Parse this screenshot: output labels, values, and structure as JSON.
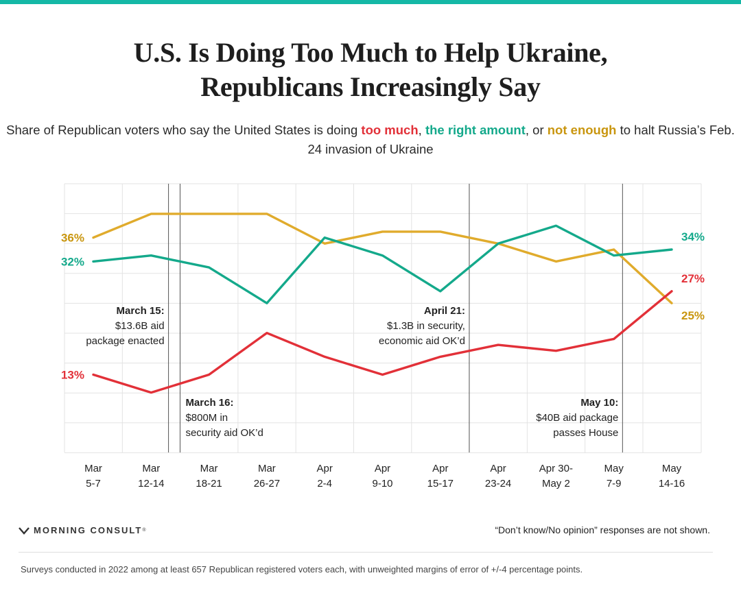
{
  "colors": {
    "top_bar": "#15b8a6",
    "too_much": "#e23038",
    "right_amount": "#14a98b",
    "not_enough": "#e0ab2c",
    "not_enough_label": "#c9960f",
    "grid": "#e3e3e3",
    "event_line": "#555555"
  },
  "title_lines": [
    "U.S. Is Doing Too Much to Help Ukraine,",
    "Republicans Increasingly Say"
  ],
  "subtitle": {
    "p1": "Share of Republican voters who say the United States is doing ",
    "too_much": "too much",
    "p2": ", ",
    "right_amount": "the right amount",
    "p3": ", or ",
    "not_enough": "not enough",
    "p4": " to halt Russia’s Feb. 24 invasion of Ukraine"
  },
  "chart_data": {
    "type": "line",
    "title": "U.S. Is Doing Too Much to Help Ukraine, Republicans Increasingly Say",
    "xlabel": "",
    "ylabel": "",
    "ylim": [
      0,
      45
    ],
    "grid": true,
    "categories": [
      [
        "Mar",
        "5-7"
      ],
      [
        "Mar",
        "12-14"
      ],
      [
        "Mar",
        "18-21"
      ],
      [
        "Mar",
        "26-27"
      ],
      [
        "Apr",
        "2-4"
      ],
      [
        "Apr",
        "9-10"
      ],
      [
        "Apr",
        "15-17"
      ],
      [
        "Apr",
        "23-24"
      ],
      [
        "Apr 30-",
        "May 2"
      ],
      [
        "May",
        "7-9"
      ],
      [
        "May",
        "14-16"
      ]
    ],
    "series": [
      {
        "key": "not_enough",
        "name": "not enough",
        "values": [
          36,
          40,
          40,
          40,
          35,
          37,
          37,
          35,
          32,
          34,
          25
        ],
        "start_label": "36%",
        "end_label": "25%",
        "end_pos": "below"
      },
      {
        "key": "right_amount",
        "name": "the right amount",
        "values": [
          32,
          33,
          31,
          25,
          36,
          33,
          27,
          35,
          38,
          33,
          34
        ],
        "start_label": "32%",
        "end_label": "34%",
        "end_pos": "above"
      },
      {
        "key": "too_much",
        "name": "too much",
        "values": [
          13,
          10,
          13,
          20,
          16,
          13,
          16,
          18,
          17,
          19,
          27
        ],
        "start_label": "13%",
        "end_label": "27%",
        "end_pos": "above"
      }
    ],
    "events": [
      {
        "after_index": 1,
        "offset": 0.3,
        "date": "March 15:",
        "lines": [
          "$13.6B aid",
          "package enacted"
        ],
        "align": "right",
        "vpos": "upper"
      },
      {
        "after_index": 1,
        "offset": 0.5,
        "date": "March 16:",
        "lines": [
          "$800M in",
          "security aid OK’d"
        ],
        "align": "left",
        "vpos": "lower"
      },
      {
        "after_index": 6,
        "offset": 0.5,
        "date": "April 21:",
        "lines": [
          "$1.3B in security,",
          "economic aid OK’d"
        ],
        "align": "right",
        "vpos": "upper"
      },
      {
        "after_index": 9,
        "offset": 0.15,
        "date": "May 10:",
        "lines": [
          "$40B aid package",
          "passes House"
        ],
        "align": "right",
        "vpos": "lower"
      }
    ]
  },
  "brand": "MORNING CONSULT",
  "brand_mark": "®",
  "note": "“Don’t know/No opinion” responses are not shown.",
  "footnote": "Surveys conducted in 2022 among at least 657 Republican registered voters each, with unweighted margins of error of +/-4 percentage points."
}
